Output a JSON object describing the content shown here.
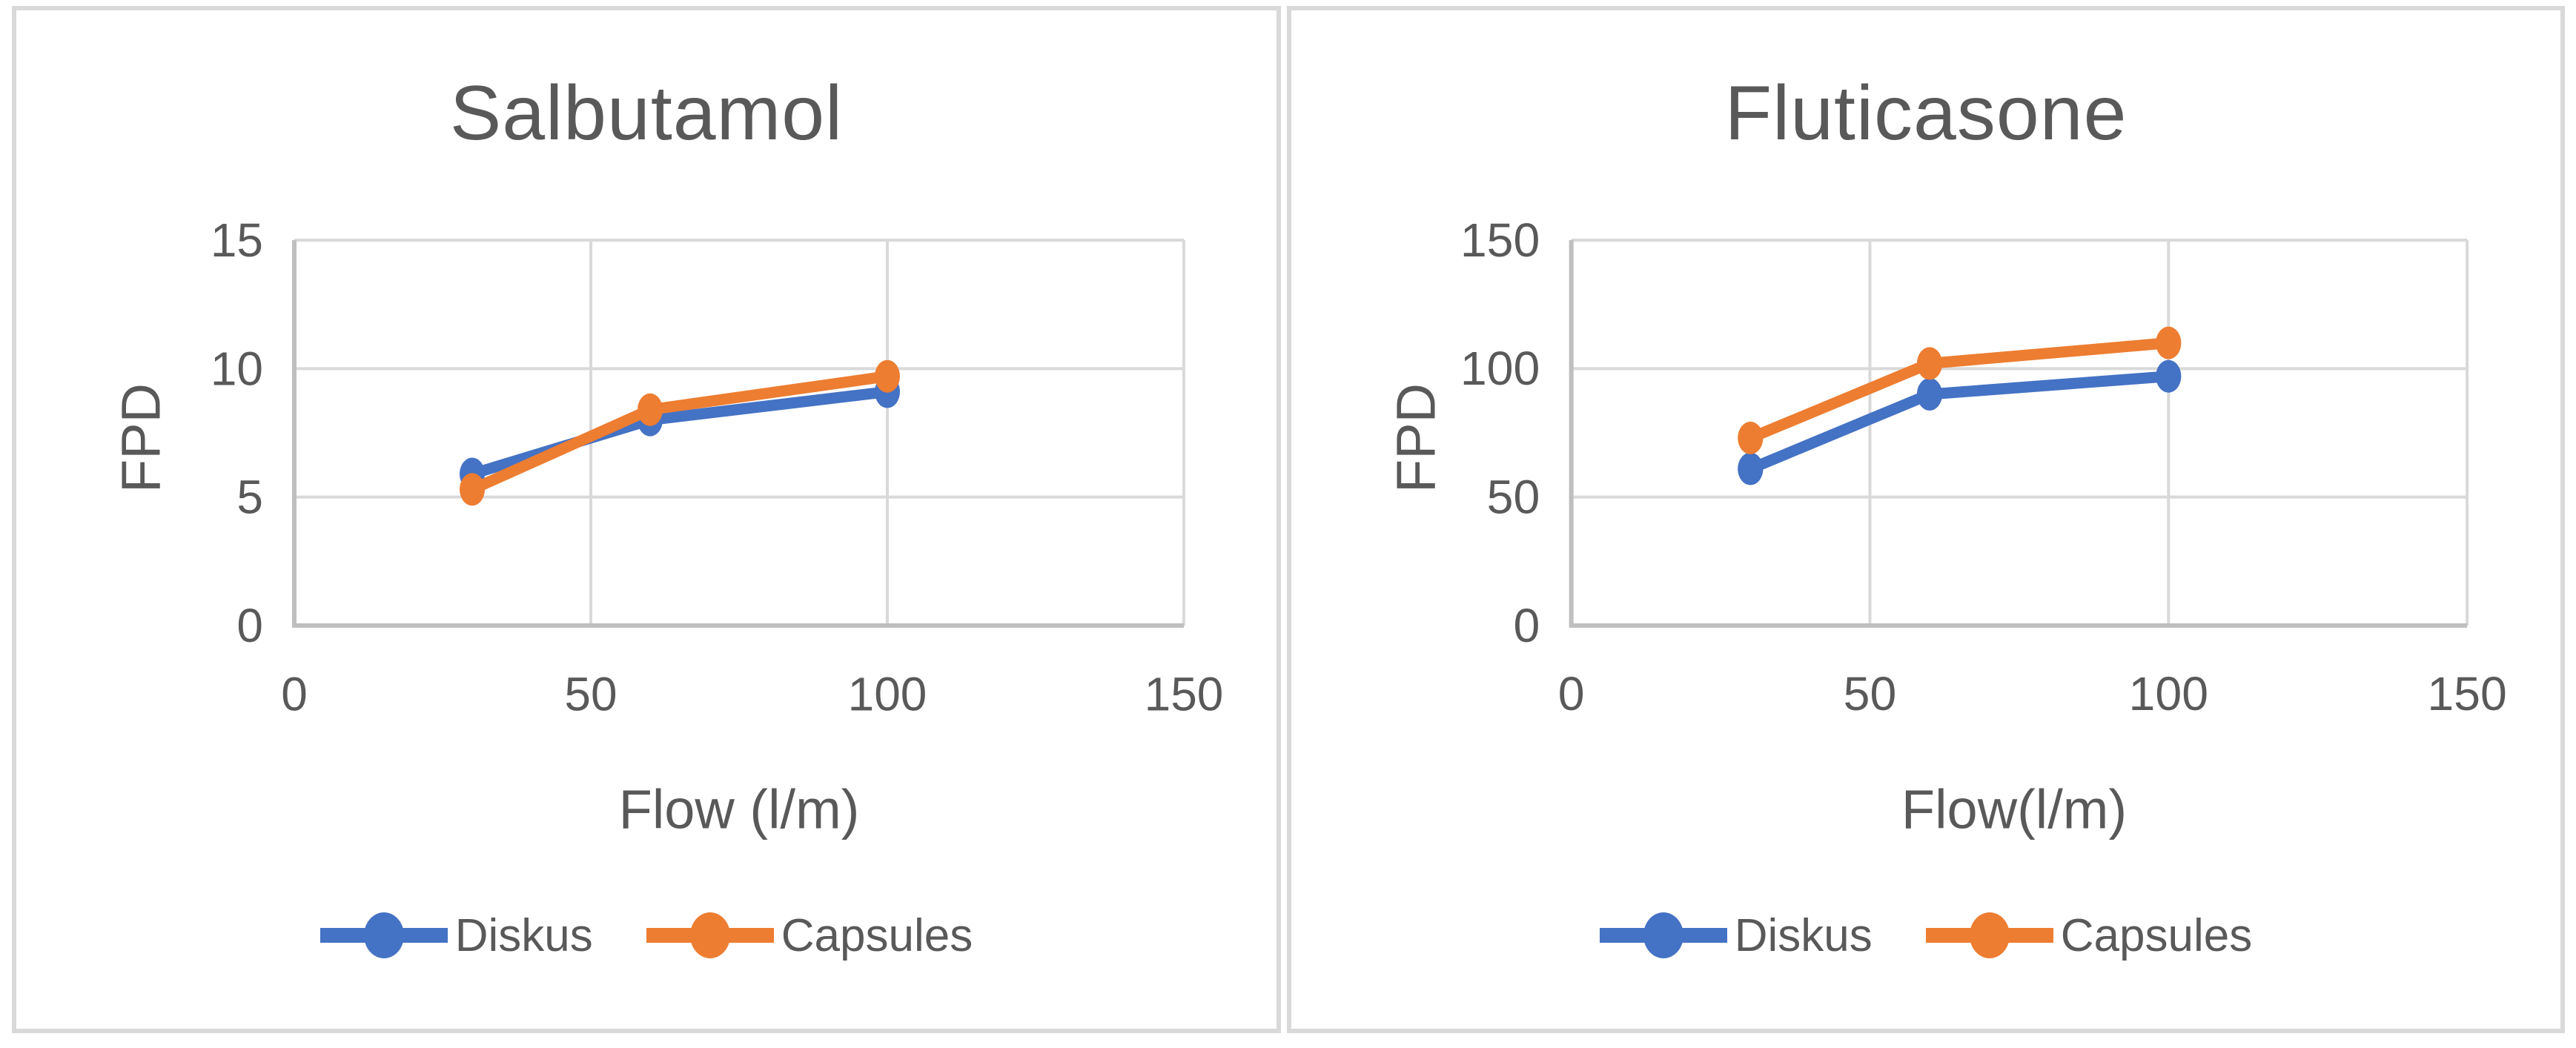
{
  "page": {
    "background": "#ffffff",
    "panel_border_color": "#d9d9d9"
  },
  "colors": {
    "diskus": "#4472C4",
    "capsules": "#ED7D31",
    "text": "#595959",
    "gridline": "#d9d9d9",
    "axis_line": "#bfbfbf"
  },
  "chart_data": [
    {
      "type": "line",
      "title": "Salbutamol",
      "xlabel": "Flow (l/m)",
      "ylabel": "FPD",
      "x": [
        30,
        60,
        100
      ],
      "xticks": [
        0,
        50,
        100,
        150
      ],
      "yticks": [
        0,
        5,
        10,
        15
      ],
      "xlim": [
        0,
        150
      ],
      "ylim": [
        0,
        15
      ],
      "grid": true,
      "legend_position": "bottom",
      "series": [
        {
          "name": "Diskus",
          "color": "#4472C4",
          "values": [
            5.9,
            8.0,
            9.1
          ]
        },
        {
          "name": "Capsules",
          "color": "#ED7D31",
          "values": [
            5.3,
            8.4,
            9.7
          ]
        }
      ]
    },
    {
      "type": "line",
      "title": "Fluticasone",
      "xlabel": "Flow(l/m)",
      "ylabel": "FPD",
      "x": [
        30,
        60,
        100
      ],
      "xticks": [
        0,
        50,
        100,
        150
      ],
      "yticks": [
        0,
        50,
        100,
        150
      ],
      "xlim": [
        0,
        150
      ],
      "ylim": [
        0,
        150
      ],
      "grid": true,
      "legend_position": "bottom",
      "series": [
        {
          "name": "Diskus",
          "color": "#4472C4",
          "values": [
            61,
            90,
            97
          ]
        },
        {
          "name": "Capsules",
          "color": "#ED7D31",
          "values": [
            73,
            102,
            110
          ]
        }
      ]
    }
  ]
}
